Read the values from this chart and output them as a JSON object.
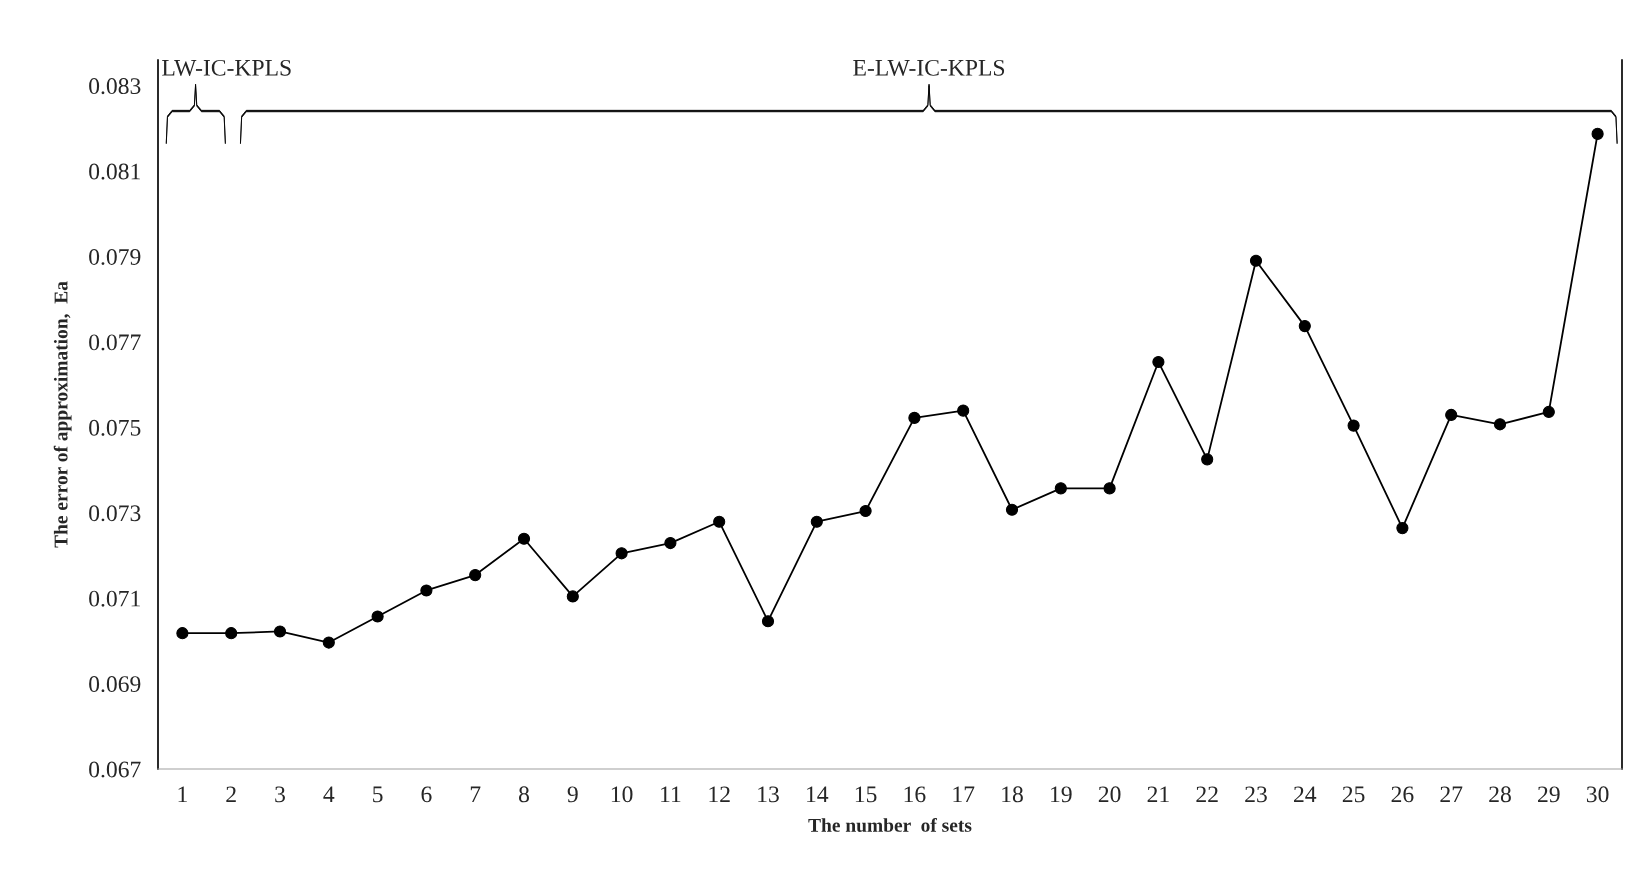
{
  "chart_data": {
    "type": "line",
    "xlabel": "The number  of sets",
    "ylabel": "The error of approximation,  Ea",
    "categories": [
      "1",
      "2",
      "3",
      "4",
      "5",
      "6",
      "7",
      "8",
      "9",
      "10",
      "11",
      "12",
      "13",
      "14",
      "15",
      "16",
      "17",
      "18",
      "19",
      "20",
      "21",
      "22",
      "23",
      "24",
      "25",
      "26",
      "27",
      "28",
      "29",
      "30"
    ],
    "series": [
      {
        "color": "#000000",
        "values": [
          0.07018,
          0.07018,
          0.07022,
          0.06996,
          0.07057,
          0.07118,
          0.07154,
          0.07239,
          0.07104,
          0.07205,
          0.07229,
          0.07279,
          0.07046,
          0.07279,
          0.07304,
          0.07522,
          0.07539,
          0.07307,
          0.07357,
          0.07357,
          0.07653,
          0.07425,
          0.0789,
          0.07737,
          0.07504,
          0.07264,
          0.07529,
          0.07507,
          0.07536,
          0.08187
        ]
      }
    ],
    "ylim": [
      0.067,
      0.0836
    ],
    "yticks": [
      0.067,
      0.069,
      0.071,
      0.073,
      0.075,
      0.077,
      0.079,
      0.081,
      0.083
    ],
    "annotations": [
      "LW-IC-KPLS",
      "E-LW-IC-KPLS"
    ],
    "marker": "circle",
    "line_style": "solid",
    "grid": false,
    "legend": false
  }
}
